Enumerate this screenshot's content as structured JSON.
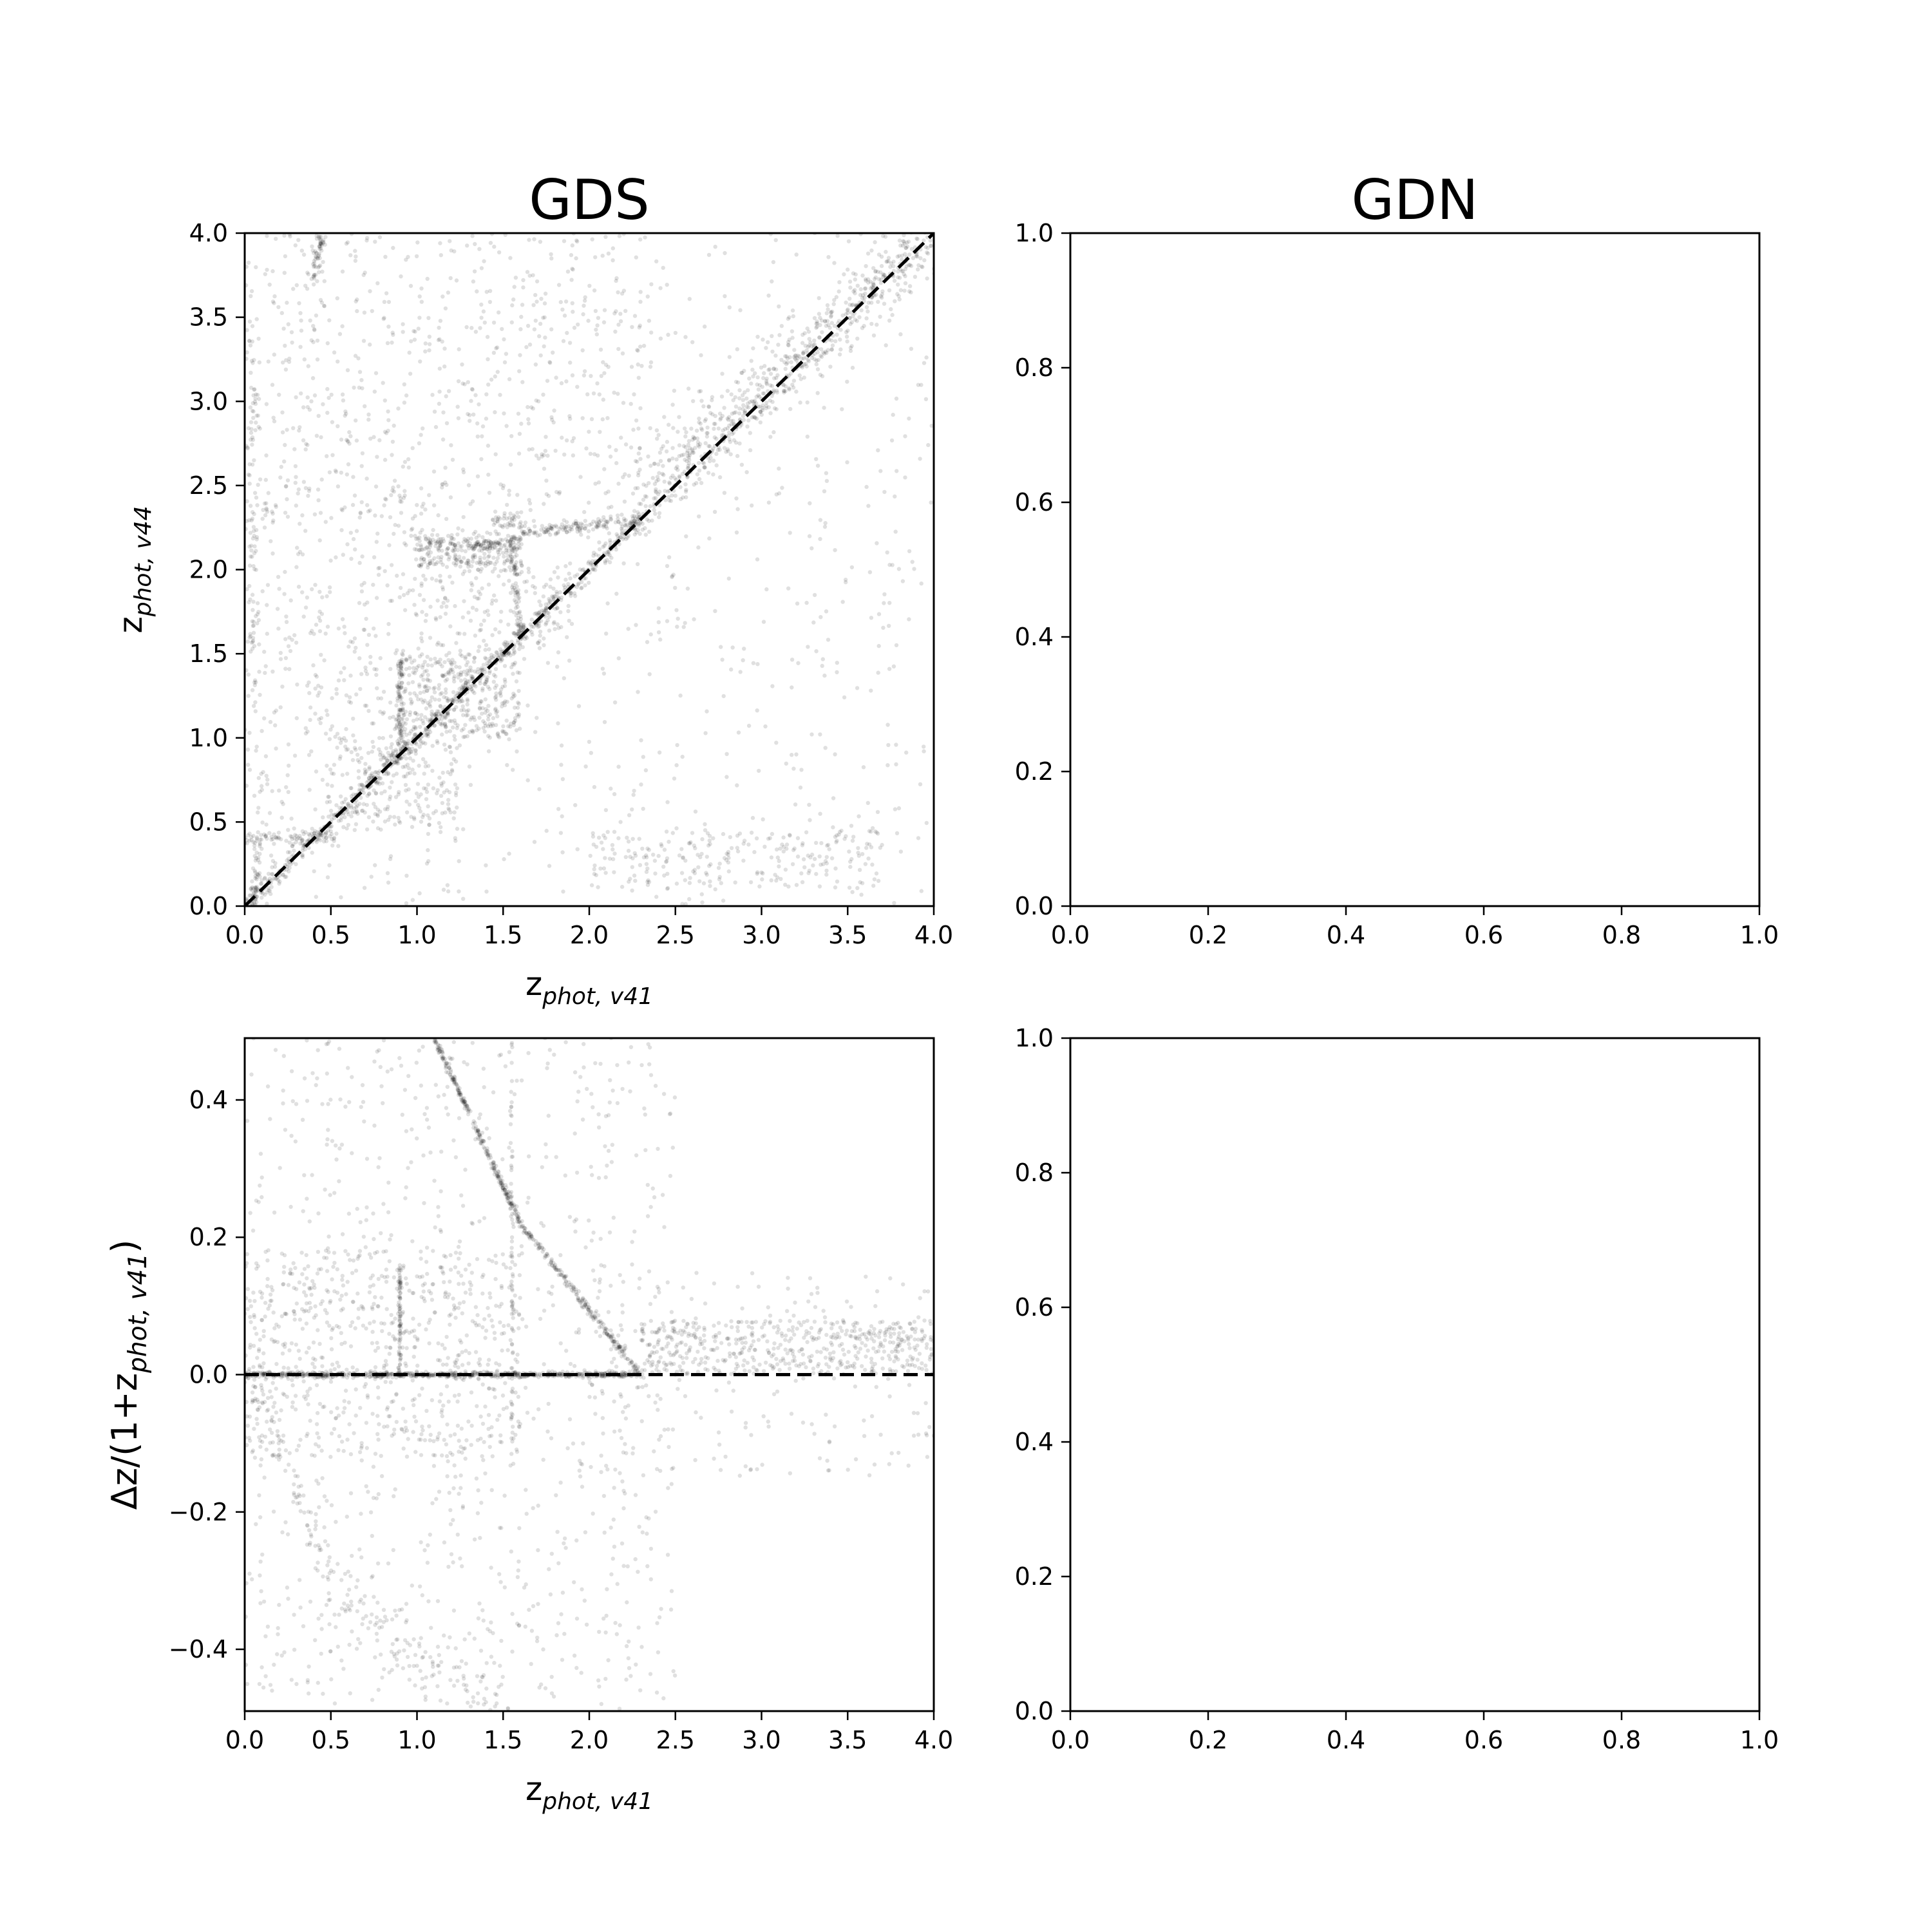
{
  "chart_data": [
    {
      "id": "gds-top",
      "type": "scatter",
      "title": "GDS",
      "xlabel_parts": [
        {
          "t": "z",
          "sub": false
        },
        {
          "t": "phot, v41",
          "sub": true
        }
      ],
      "ylabel_parts": [
        {
          "t": "z",
          "sub": false
        },
        {
          "t": "phot, v44",
          "sub": true
        }
      ],
      "xlim": [
        0,
        4
      ],
      "ylim": [
        0,
        4
      ],
      "xticks": [
        0,
        0.5,
        1,
        1.5,
        2,
        2.5,
        3,
        3.5,
        4
      ],
      "yticks": [
        0,
        0.5,
        1,
        1.5,
        2,
        2.5,
        3,
        3.5,
        4
      ],
      "xtick_labels": [
        "0.0",
        "0.5",
        "1.0",
        "1.5",
        "2.0",
        "2.5",
        "3.0",
        "3.5",
        "4.0"
      ],
      "ytick_labels": [
        "0.0",
        "0.5",
        "1.0",
        "1.5",
        "2.0",
        "2.5",
        "3.0",
        "3.5",
        "4.0"
      ],
      "reference_line": {
        "style": "dashed",
        "x": [
          0,
          4
        ],
        "y": [
          0,
          4
        ]
      },
      "point_color": "#000000",
      "point_alpha": 0.12,
      "density_features": [
        {
          "kind": "line",
          "x": [
            0,
            2.3
          ],
          "y": [
            0,
            2.3
          ],
          "spread": 0.03,
          "n": 700
        },
        {
          "kind": "line",
          "x": [
            2.3,
            4.0
          ],
          "y": [
            2.3,
            4.0
          ],
          "spread": 0.05,
          "n": 250
        },
        {
          "kind": "line",
          "x": [
            2.3,
            4.0
          ],
          "y": [
            2.45,
            4.0
          ],
          "spread": 0.12,
          "n": 500
        },
        {
          "kind": "line",
          "x": [
            1.0,
            1.6
          ],
          "y": [
            2.15,
            2.15
          ],
          "spread": 0.03,
          "n": 220
        },
        {
          "kind": "line",
          "x": [
            1.0,
            1.6
          ],
          "y": [
            2.05,
            2.05
          ],
          "spread": 0.03,
          "n": 90
        },
        {
          "kind": "line",
          "x": [
            1.45,
            1.6
          ],
          "y": [
            2.28,
            2.3
          ],
          "spread": 0.03,
          "n": 40
        },
        {
          "kind": "line",
          "x": [
            1.6,
            2.3
          ],
          "y": [
            2.22,
            2.3
          ],
          "spread": 0.02,
          "n": 150
        },
        {
          "kind": "line",
          "x": [
            1.55,
            1.6
          ],
          "y": [
            2.2,
            1.6
          ],
          "spread": 0.02,
          "n": 70
        },
        {
          "kind": "line",
          "x": [
            0.9,
            0.9
          ],
          "y": [
            0.9,
            1.45
          ],
          "spread": 0.02,
          "n": 110
        },
        {
          "kind": "line",
          "x": [
            0.0,
            0.55
          ],
          "y": [
            0.41,
            0.41
          ],
          "spread": 0.02,
          "n": 90
        },
        {
          "kind": "line",
          "x": [
            0.05,
            0.08
          ],
          "y": [
            0.0,
            0.4
          ],
          "spread": 0.02,
          "n": 50
        },
        {
          "kind": "blob",
          "x": [
            0.9,
            1.6
          ],
          "y": [
            1.0,
            1.5
          ],
          "n": 350
        },
        {
          "kind": "blob",
          "x": [
            0.55,
            1.25
          ],
          "y": [
            0.45,
            1.0
          ],
          "n": 200
        },
        {
          "kind": "blob",
          "x": [
            1.0,
            1.9
          ],
          "y": [
            1.5,
            2.05
          ],
          "n": 180
        },
        {
          "kind": "line",
          "x": [
            0.4,
            0.45
          ],
          "y": [
            3.7,
            4.0
          ],
          "spread": 0.03,
          "n": 60
        },
        {
          "kind": "line",
          "x": [
            0.05,
            0.05
          ],
          "y": [
            1.2,
            3.5
          ],
          "spread": 0.03,
          "n": 80
        },
        {
          "kind": "blob",
          "x": [
            2.0,
            3.7
          ],
          "y": [
            0.1,
            0.45
          ],
          "n": 230
        },
        {
          "kind": "blob",
          "x": [
            0.0,
            2.3
          ],
          "y": [
            2.3,
            4.0
          ],
          "n": 500
        },
        {
          "kind": "blob",
          "x": [
            0.0,
            1.0
          ],
          "y": [
            0.5,
            2.5
          ],
          "n": 300
        },
        {
          "kind": "blob",
          "x": [
            0.0,
            4.0
          ],
          "y": [
            0.0,
            4.0
          ],
          "n": 800
        }
      ]
    },
    {
      "id": "gdn-top",
      "type": "scatter",
      "title": "GDN",
      "xlim": [
        0,
        1
      ],
      "ylim": [
        0,
        1
      ],
      "xticks": [
        0,
        0.2,
        0.4,
        0.6,
        0.8,
        1
      ],
      "yticks": [
        0,
        0.2,
        0.4,
        0.6,
        0.8,
        1
      ],
      "xtick_labels": [
        "0.0",
        "0.2",
        "0.4",
        "0.6",
        "0.8",
        "1.0"
      ],
      "ytick_labels": [
        "0.0",
        "0.2",
        "0.4",
        "0.6",
        "0.8",
        "1.0"
      ]
    },
    {
      "id": "gds-bottom",
      "type": "scatter",
      "xlabel_parts": [
        {
          "t": "z",
          "sub": false
        },
        {
          "t": "phot, v41",
          "sub": true
        }
      ],
      "ylabel_parts": [
        {
          "t": "Δz/(1+z",
          "sub": false
        },
        {
          "t": "phot, v41",
          "sub": true
        },
        {
          "t": ")",
          "sub": false
        }
      ],
      "xlim": [
        0,
        4
      ],
      "ylim": [
        -0.49,
        0.49
      ],
      "xticks": [
        0,
        0.5,
        1,
        1.5,
        2,
        2.5,
        3,
        3.5,
        4
      ],
      "yticks": [
        -0.4,
        -0.2,
        0,
        0.2,
        0.4
      ],
      "xtick_labels": [
        "0.0",
        "0.5",
        "1.0",
        "1.5",
        "2.0",
        "2.5",
        "3.0",
        "3.5",
        "4.0"
      ],
      "ytick_labels": [
        "−0.4",
        "−0.2",
        "0.0",
        "0.2",
        "0.4"
      ],
      "reference_line": {
        "style": "dashed",
        "x": [
          0,
          4
        ],
        "y": [
          0,
          0
        ]
      },
      "point_color": "#000000",
      "point_alpha": 0.12,
      "density_features": [
        {
          "kind": "line",
          "x": [
            0,
            2.3
          ],
          "y": [
            0,
            0
          ],
          "spread": 0.008,
          "n": 700
        },
        {
          "kind": "line",
          "x": [
            1.1,
            1.6
          ],
          "y": [
            0.49,
            0.22
          ],
          "spread": 0.012,
          "n": 260
        },
        {
          "kind": "line",
          "x": [
            1.6,
            2.3
          ],
          "y": [
            0.22,
            0.0
          ],
          "spread": 0.012,
          "n": 220
        },
        {
          "kind": "blob",
          "x": [
            2.3,
            4.0
          ],
          "y": [
            0.0,
            0.08
          ],
          "n": 500
        },
        {
          "kind": "line",
          "x": [
            0.9,
            0.9
          ],
          "y": [
            0.0,
            0.16
          ],
          "spread": 0.008,
          "n": 80
        },
        {
          "kind": "line",
          "x": [
            1.55,
            1.55
          ],
          "y": [
            -0.15,
            0.49
          ],
          "spread": 0.008,
          "n": 70
        },
        {
          "kind": "blob",
          "x": [
            0.0,
            1.6
          ],
          "y": [
            -0.12,
            0.18
          ],
          "n": 600
        },
        {
          "kind": "curve",
          "x": [
            0.05,
            0.5,
            1.0,
            1.5
          ],
          "y": [
            0.0,
            -0.3,
            -0.42,
            -0.48
          ],
          "spread": 0.025,
          "n": 220
        },
        {
          "kind": "blob",
          "x": [
            0.0,
            2.5
          ],
          "y": [
            -0.49,
            0.49
          ],
          "n": 900
        },
        {
          "kind": "blob",
          "x": [
            2.0,
            4.0
          ],
          "y": [
            -0.15,
            0.15
          ],
          "n": 200
        }
      ]
    },
    {
      "id": "gdn-bottom",
      "type": "scatter",
      "xlim": [
        0,
        1
      ],
      "ylim": [
        0,
        1
      ],
      "xticks": [
        0,
        0.2,
        0.4,
        0.6,
        0.8,
        1
      ],
      "yticks": [
        0,
        0.2,
        0.4,
        0.6,
        0.8,
        1
      ],
      "xtick_labels": [
        "0.0",
        "0.2",
        "0.4",
        "0.6",
        "0.8",
        "1.0"
      ],
      "ytick_labels": [
        "0.0",
        "0.2",
        "0.4",
        "0.6",
        "0.8",
        "1.0"
      ]
    }
  ]
}
